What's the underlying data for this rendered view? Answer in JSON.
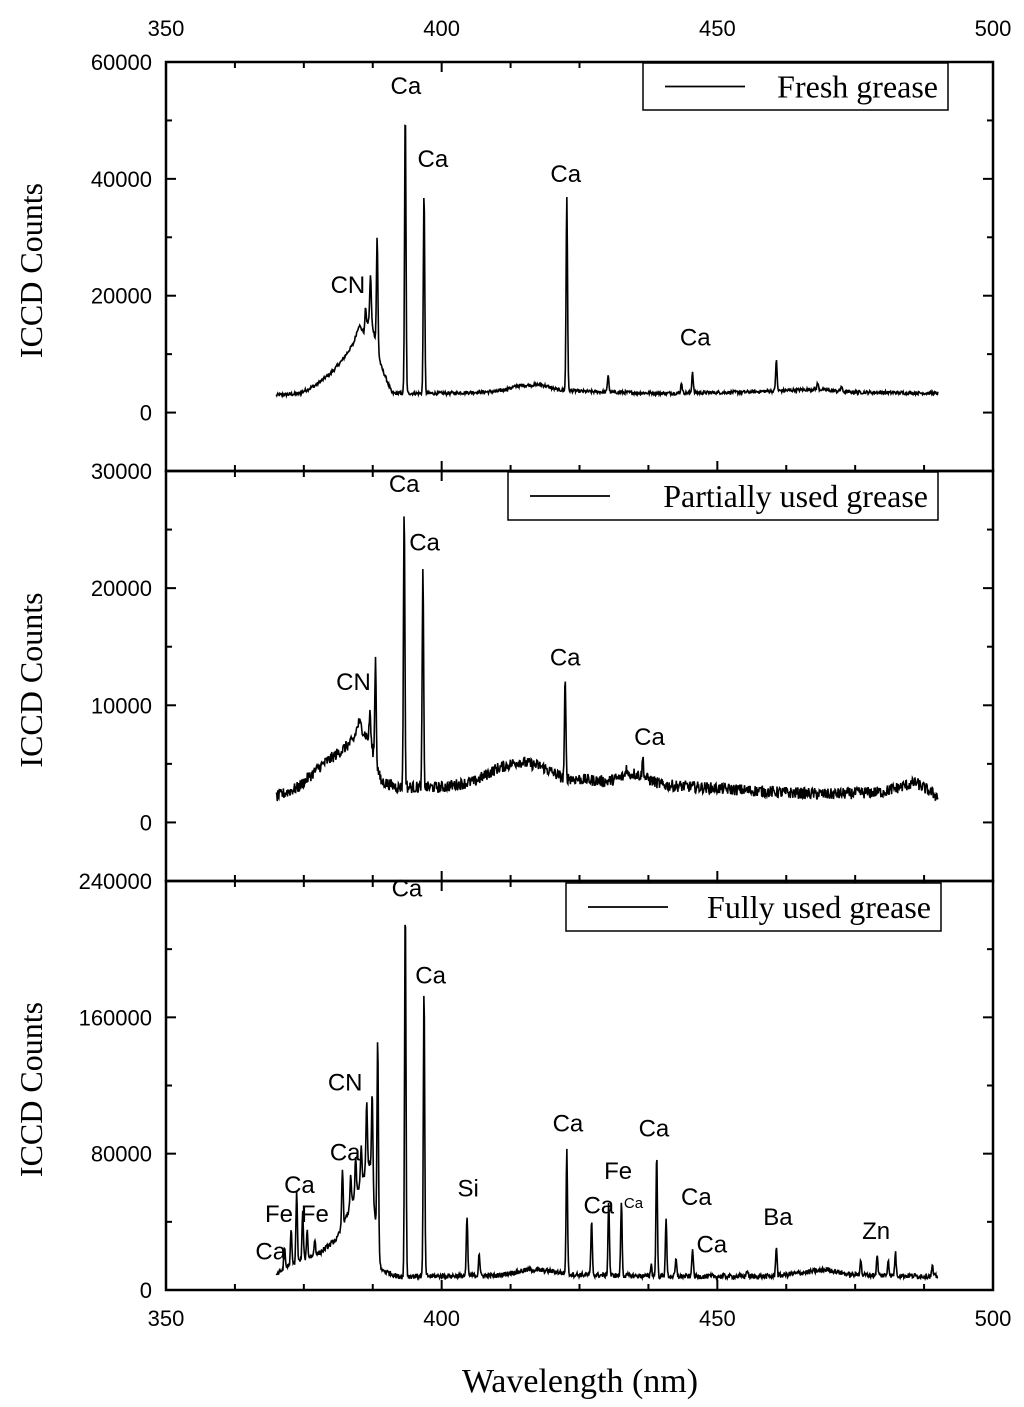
{
  "chart_data": {
    "type": "line",
    "xlabel": "Wavelength (nm)",
    "xlim": [
      350,
      500
    ],
    "x_ticks": [
      350,
      400,
      450,
      500
    ],
    "x_tick_labels": [
      "350",
      "400",
      "450",
      "500"
    ],
    "panels": [
      {
        "name": "Fresh grease",
        "legend": "Fresh grease",
        "legend_position": "top-right",
        "ylabel": "ICCD Counts",
        "ylim": [
          -10000,
          60000
        ],
        "y_ticks": [
          0,
          20000,
          40000,
          60000
        ],
        "y_tick_labels": [
          "0",
          "20000",
          "40000",
          "60000"
        ],
        "baseline": 3200,
        "noise": 300,
        "points": [
          [
            370,
            3000
          ],
          [
            374,
            3200
          ],
          [
            377,
            4600
          ],
          [
            380,
            6800
          ],
          [
            382,
            9000
          ],
          [
            384,
            11800
          ],
          [
            385,
            15000
          ],
          [
            386,
            13500
          ],
          [
            387,
            16500
          ],
          [
            388,
            12500
          ],
          [
            389,
            8000
          ],
          [
            391,
            3300
          ],
          [
            400,
            3300
          ],
          [
            410,
            3600
          ],
          [
            414,
            4600
          ],
          [
            418,
            4800
          ],
          [
            421,
            3900
          ],
          [
            426,
            3600
          ],
          [
            440,
            3300
          ],
          [
            455,
            3500
          ],
          [
            468,
            4000
          ],
          [
            474,
            3500
          ],
          [
            490,
            3300
          ]
        ],
        "peaks": [
          [
            386.2,
            18000
          ],
          [
            387.1,
            23500
          ],
          [
            388.3,
            30000
          ],
          [
            393.4,
            52000
          ],
          [
            396.8,
            38000
          ],
          [
            422.7,
            37000
          ],
          [
            430.2,
            6500
          ],
          [
            443.5,
            5200
          ],
          [
            445.5,
            7000
          ],
          [
            460.7,
            9000
          ],
          [
            468.2,
            5000
          ],
          [
            472.5,
            4500
          ]
        ],
        "annotations": [
          {
            "text": "Ca",
            "x": 393.5,
            "y": 54500
          },
          {
            "text": "Ca",
            "x": 398.4,
            "y": 42000
          },
          {
            "text": "Ca",
            "x": 422.5,
            "y": 39500
          },
          {
            "text": "CN",
            "x": 383.0,
            "y": 20500
          },
          {
            "text": "Ca",
            "x": 446.0,
            "y": 11500
          }
        ]
      },
      {
        "name": "Partially used grease",
        "legend": "Partially used grease",
        "legend_position": "top-right",
        "ylabel": "ICCD Counts",
        "ylim": [
          -5000,
          30000
        ],
        "y_ticks": [
          0,
          10000,
          20000,
          30000
        ],
        "y_tick_labels": [
          "0",
          "10000",
          "20000",
          "30000"
        ],
        "baseline": 2800,
        "noise": 500,
        "points": [
          [
            370,
            2200
          ],
          [
            374,
            3000
          ],
          [
            378,
            4800
          ],
          [
            382,
            6200
          ],
          [
            384,
            7000
          ],
          [
            385,
            8600
          ],
          [
            386,
            7600
          ],
          [
            387,
            7000
          ],
          [
            389,
            3500
          ],
          [
            392,
            3000
          ],
          [
            400,
            3000
          ],
          [
            406,
            3500
          ],
          [
            410,
            4600
          ],
          [
            414,
            5200
          ],
          [
            418,
            4800
          ],
          [
            422,
            3800
          ],
          [
            430,
            3500
          ],
          [
            435,
            4200
          ],
          [
            440,
            3200
          ],
          [
            450,
            2900
          ],
          [
            460,
            2600
          ],
          [
            470,
            2400
          ],
          [
            480,
            2600
          ],
          [
            486,
            3400
          ],
          [
            490,
            2200
          ]
        ],
        "peaks": [
          [
            387.0,
            9500
          ],
          [
            388.0,
            14000
          ],
          [
            393.2,
            27000
          ],
          [
            396.6,
            21500
          ],
          [
            422.4,
            12000
          ],
          [
            436.5,
            5500
          ],
          [
            433.5,
            4800
          ]
        ],
        "annotations": [
          {
            "text": "Ca",
            "x": 393.2,
            "y": 28200
          },
          {
            "text": "Ca",
            "x": 396.9,
            "y": 23200
          },
          {
            "text": "Ca",
            "x": 422.4,
            "y": 13400
          },
          {
            "text": "CN",
            "x": 384.0,
            "y": 11300
          },
          {
            "text": "Ca",
            "x": 437.7,
            "y": 6600
          }
        ]
      },
      {
        "name": "Fully used grease",
        "legend": "Fully used grease",
        "legend_position": "top-right",
        "ylabel": "ICCD Counts",
        "ylim": [
          0,
          240000
        ],
        "y_ticks": [
          0,
          80000,
          160000,
          240000
        ],
        "y_tick_labels": [
          "0",
          "80000",
          "160000",
          "240000"
        ],
        "baseline": 8000,
        "noise": 1500,
        "points": [
          [
            370,
            9000
          ],
          [
            372,
            14000
          ],
          [
            375,
            18000
          ],
          [
            378,
            22000
          ],
          [
            381,
            30000
          ],
          [
            383,
            45000
          ],
          [
            385,
            60000
          ],
          [
            387,
            75000
          ],
          [
            388,
            40000
          ],
          [
            389,
            12000
          ],
          [
            392,
            8000
          ],
          [
            410,
            8500
          ],
          [
            416,
            12000
          ],
          [
            420,
            11000
          ],
          [
            424,
            9000
          ],
          [
            440,
            8000
          ],
          [
            460,
            8000
          ],
          [
            470,
            12000
          ],
          [
            474,
            9000
          ],
          [
            490,
            8000
          ]
        ],
        "peaks": [
          [
            371.5,
            25000
          ],
          [
            372.7,
            35000
          ],
          [
            373.7,
            58000
          ],
          [
            374.8,
            45000
          ],
          [
            375.6,
            35000
          ],
          [
            377.0,
            30000
          ],
          [
            382.0,
            72000
          ],
          [
            383.5,
            68000
          ],
          [
            384.4,
            78000
          ],
          [
            385.4,
            85000
          ],
          [
            386.4,
            110000
          ],
          [
            387.4,
            115000
          ],
          [
            388.4,
            148000
          ],
          [
            393.4,
            228000
          ],
          [
            396.8,
            177000
          ],
          [
            404.6,
            43000
          ],
          [
            406.8,
            22000
          ],
          [
            422.7,
            82000
          ],
          [
            427.2,
            40000
          ],
          [
            430.3,
            52000
          ],
          [
            432.6,
            52000
          ],
          [
            438.0,
            15000
          ],
          [
            439.0,
            80000
          ],
          [
            440.7,
            42000
          ],
          [
            442.5,
            18000
          ],
          [
            445.5,
            25000
          ],
          [
            455.4,
            12000
          ],
          [
            460.7,
            26000
          ],
          [
            476.0,
            18000
          ],
          [
            479.0,
            20000
          ],
          [
            481.0,
            18000
          ],
          [
            482.3,
            22000
          ],
          [
            489.0,
            14000
          ]
        ],
        "annotations": [
          {
            "text": "Ca",
            "x": 393.7,
            "y": 231000
          },
          {
            "text": "Ca",
            "x": 398.0,
            "y": 180000
          },
          {
            "text": "CN",
            "x": 382.5,
            "y": 117000
          },
          {
            "text": "Ca",
            "x": 382.5,
            "y": 76000
          },
          {
            "text": "Ca",
            "x": 374.2,
            "y": 57000
          },
          {
            "text": "Fe",
            "x": 370.5,
            "y": 40000
          },
          {
            "text": "Fe",
            "x": 377.0,
            "y": 40000
          },
          {
            "text": "Ca",
            "x": 369.0,
            "y": 18000
          },
          {
            "text": "Si",
            "x": 404.8,
            "y": 55000
          },
          {
            "text": "Ca",
            "x": 422.9,
            "y": 93000
          },
          {
            "text": "Ca",
            "x": 428.5,
            "y": 45000
          },
          {
            "text": "Fe",
            "x": 432.0,
            "y": 65000
          },
          {
            "text": "Ca",
            "x": 434.8,
            "y": 48000
          },
          {
            "text": "Ca",
            "x": 438.5,
            "y": 90000
          },
          {
            "text": "Ca",
            "x": 446.2,
            "y": 50000
          },
          {
            "text": "Ca",
            "x": 449.0,
            "y": 22000
          },
          {
            "text": "Ba",
            "x": 461.0,
            "y": 38000
          },
          {
            "text": "Zn",
            "x": 478.8,
            "y": 30000
          }
        ]
      }
    ]
  }
}
